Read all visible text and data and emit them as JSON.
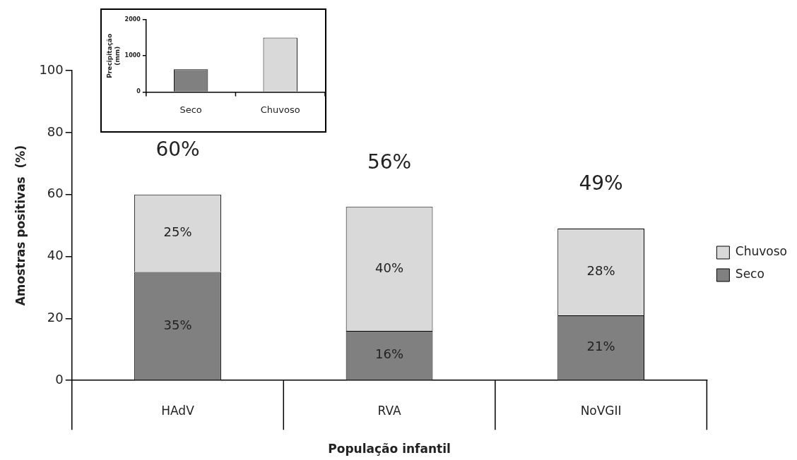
{
  "chart_data": [
    {
      "type": "bar",
      "stacked": true,
      "categories": [
        "HAdV",
        "RVA",
        "NoVGII"
      ],
      "series": [
        {
          "name": "Seco",
          "color": "#808080",
          "values": [
            35,
            16,
            21
          ],
          "value_labels": [
            "35%",
            "16%",
            "21%"
          ]
        },
        {
          "name": "Chuvoso",
          "color": "#d9d9d9",
          "values": [
            25,
            40,
            28
          ],
          "value_labels": [
            "25%",
            "40%",
            "28%"
          ]
        }
      ],
      "totals": [
        "60%",
        "56%",
        "49%"
      ],
      "ylim": [
        0,
        100
      ],
      "yticks": [
        0,
        20,
        40,
        60,
        80,
        100
      ],
      "xlabel": "População infantil",
      "ylabel": "Amostras positivas  (%)",
      "legend": "right",
      "grid": false
    },
    {
      "type": "bar",
      "categories": [
        "Seco",
        "Chuvoso"
      ],
      "values": [
        630,
        1500
      ],
      "colors": [
        "#808080",
        "#d9d9d9"
      ],
      "ylim": [
        0,
        2000
      ],
      "yticks": [
        0,
        1000,
        2000
      ],
      "ylabel": "Precipitação (mm)",
      "grid": false
    }
  ]
}
